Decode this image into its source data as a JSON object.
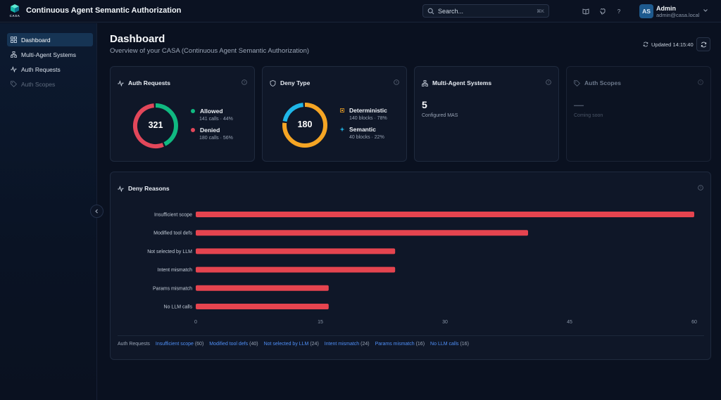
{
  "header": {
    "logo_text": "CASA",
    "title": "Continuous Agent Semantic Authorization",
    "search_placeholder": "Search...",
    "search_shortcut": "⌘K",
    "icons": [
      "book-icon",
      "github-icon",
      "help-icon"
    ],
    "user": {
      "initials": "AS",
      "name": "Admin",
      "email": "admin@casa.local"
    }
  },
  "sidebar": {
    "items": [
      {
        "label": "Dashboard",
        "icon": "grid-icon",
        "active": true
      },
      {
        "label": "Multi-Agent Systems",
        "icon": "network-icon"
      },
      {
        "label": "Auth Requests",
        "icon": "activity-icon"
      },
      {
        "label": "Auth Scopes",
        "icon": "tag-icon",
        "disabled": true
      }
    ]
  },
  "page": {
    "title": "Dashboard",
    "subtitle": "Overview of your CASA (Continuous Agent Semantic Authorization)",
    "updated": "Updated 14:15:40"
  },
  "cards": {
    "auth_requests": {
      "title": "Auth Requests",
      "total": "321",
      "allowed": {
        "label": "Allowed",
        "detail": "141 calls · 44%",
        "fraction": 0.44,
        "color": "#10b981"
      },
      "denied": {
        "label": "Denied",
        "detail": "180 calls · 56%",
        "fraction": 0.56,
        "color": "#e2475a"
      }
    },
    "deny_type": {
      "title": "Deny Type",
      "total": "180",
      "deterministic": {
        "label": "Deterministic",
        "detail": "140 blocks · 78%",
        "fraction": 0.78,
        "color": "#f5a524"
      },
      "semantic": {
        "label": "Semantic",
        "detail": "40 blocks · 22%",
        "fraction": 0.22,
        "color": "#1fb6e8"
      }
    },
    "mas": {
      "title": "Multi-Agent Systems",
      "value": "5",
      "sub": "Configured MAS"
    },
    "scopes": {
      "title": "Auth Scopes",
      "value": "—",
      "sub": "Coming soon"
    }
  },
  "chart_data": {
    "type": "bar",
    "orientation": "horizontal",
    "title": "Deny Reasons",
    "categories": [
      "Insufficient scope",
      "Modified tool defs",
      "Not selected by LLM",
      "Intent mismatch",
      "Params mismatch",
      "No LLM calls"
    ],
    "values": [
      60,
      40,
      24,
      24,
      16,
      16
    ],
    "xlim": [
      0,
      60
    ],
    "xticks": [
      0,
      15,
      30,
      45,
      60
    ],
    "bar_color": "#e5444f",
    "grid": false,
    "legend_lead": "Auth Requests",
    "legend_link_color": "#4f8ff7"
  }
}
